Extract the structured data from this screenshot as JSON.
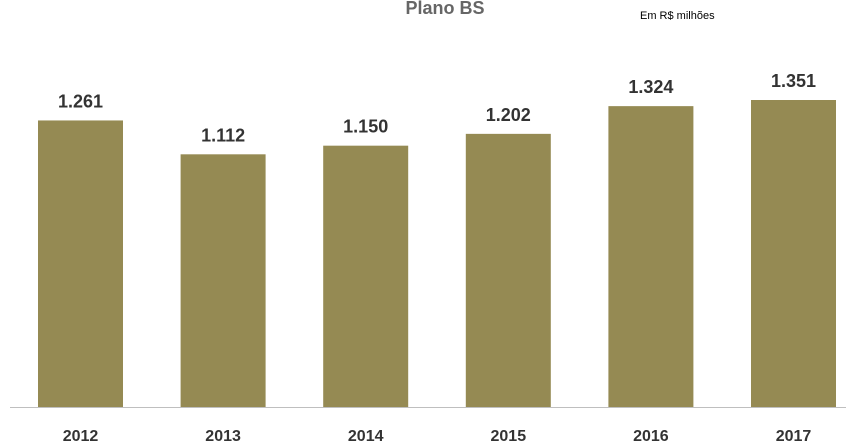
{
  "header": {
    "title": "Plano BS",
    "subtitle": "Em R$ milhões"
  },
  "colors": {
    "bar": "#958a53",
    "axis": "#bfbfbf",
    "label": "#333333"
  },
  "chart_data": {
    "type": "bar",
    "title": "Plano BS",
    "subtitle": "Em R$ milhões",
    "categories": [
      "2012",
      "2013",
      "2014",
      "2015",
      "2016",
      "2017"
    ],
    "values": [
      1261,
      1112,
      1150,
      1202,
      1324,
      1351
    ],
    "value_labels": [
      "1.261",
      "1.112",
      "1.150",
      "1.202",
      "1.324",
      "1.351"
    ],
    "xlabel": "",
    "ylabel": "",
    "ylim": [
      0,
      1400
    ],
    "grid": false,
    "legend": "none"
  }
}
